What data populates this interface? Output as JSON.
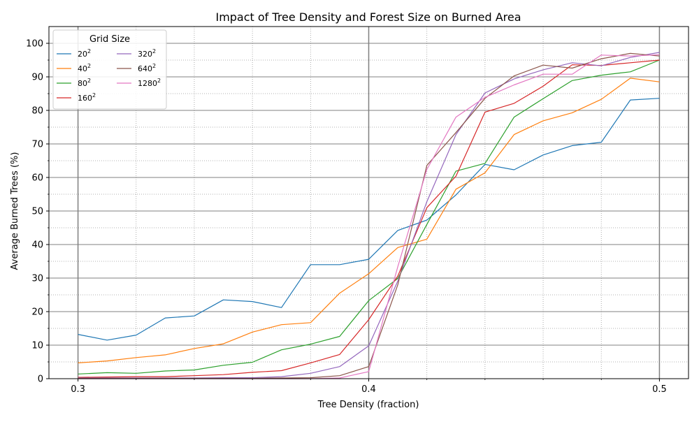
{
  "chart_data": {
    "type": "line",
    "title": "Impact of Tree Density and Forest Size on Burned Area",
    "xlabel": "Tree Density (fraction)",
    "ylabel": "Average Burned Trees (%)",
    "xlim": [
      0.29,
      0.51
    ],
    "ylim": [
      0,
      105
    ],
    "x_major_ticks": [
      0.3,
      0.4,
      0.5
    ],
    "x_major_tick_labels": [
      "0.3",
      "0.4",
      "0.5"
    ],
    "y_major_ticks": [
      0,
      10,
      20,
      30,
      40,
      50,
      60,
      70,
      80,
      90,
      100
    ],
    "y_major_tick_labels": [
      "0",
      "10",
      "20",
      "30",
      "40",
      "50",
      "60",
      "70",
      "80",
      "90",
      "100"
    ],
    "x_minor_ticks": [
      0.32,
      0.34,
      0.36,
      0.38,
      0.42,
      0.44,
      0.46,
      0.48
    ],
    "y_minor_ticks": [
      5,
      15,
      25,
      35,
      45,
      55,
      65,
      75,
      85,
      95
    ],
    "grid": "major solid gray, minor dotted",
    "legend": {
      "title": "Grid Size",
      "placement": "top-left",
      "columns": 2
    },
    "x": [
      0.3,
      0.31,
      0.32,
      0.33,
      0.34,
      0.35,
      0.36,
      0.37,
      0.38,
      0.39,
      0.4,
      0.41,
      0.42,
      0.43,
      0.44,
      0.45,
      0.46,
      0.47,
      0.48,
      0.49,
      0.5
    ],
    "series": [
      {
        "name": "20",
        "exp": "2",
        "color": "#1f77b4",
        "values": [
          13.2,
          11.5,
          13.0,
          18.1,
          18.7,
          23.5,
          23.0,
          21.2,
          34.0,
          34.0,
          35.6,
          44.2,
          47.3,
          54.8,
          63.9,
          62.3,
          66.7,
          69.5,
          70.5,
          83.1,
          83.6
        ]
      },
      {
        "name": "40",
        "exp": "2",
        "color": "#ff7f0e",
        "values": [
          4.7,
          5.3,
          6.3,
          7.1,
          9.0,
          10.4,
          13.9,
          16.1,
          16.7,
          25.5,
          31.3,
          39.1,
          41.6,
          56.5,
          61.4,
          72.8,
          76.9,
          79.3,
          83.3,
          89.6,
          88.5
        ]
      },
      {
        "name": "80",
        "exp": "2",
        "color": "#2ca02c",
        "values": [
          1.4,
          1.8,
          1.6,
          2.3,
          2.6,
          4.0,
          4.9,
          8.6,
          10.3,
          12.6,
          23.3,
          29.9,
          46.0,
          61.9,
          64.2,
          78.0,
          83.5,
          88.9,
          90.5,
          91.5,
          95.0
        ]
      },
      {
        "name": "160",
        "exp": "2",
        "color": "#d62728",
        "values": [
          0.4,
          0.5,
          0.6,
          0.6,
          0.9,
          1.2,
          1.9,
          2.4,
          4.7,
          7.2,
          17.6,
          30.6,
          51.0,
          60.4,
          79.5,
          82.1,
          87.2,
          93.6,
          93.4,
          94.2,
          95.0
        ]
      },
      {
        "name": "320",
        "exp": "2",
        "color": "#9467bd",
        "values": [
          0.2,
          0.2,
          0.2,
          0.2,
          0.2,
          0.3,
          0.3,
          0.6,
          1.6,
          3.6,
          9.8,
          29.1,
          52.8,
          72.8,
          85.2,
          89.4,
          92.1,
          94.2,
          93.3,
          95.8,
          97.3
        ]
      },
      {
        "name": "640",
        "exp": "2",
        "color": "#8c564b",
        "values": [
          0.1,
          0.1,
          0.1,
          0.1,
          0.1,
          0.1,
          0.1,
          0.2,
          0.3,
          0.9,
          3.6,
          28.0,
          63.6,
          73.4,
          83.6,
          90.3,
          93.5,
          92.6,
          95.4,
          97.0,
          96.2
        ]
      },
      {
        "name": "1280",
        "exp": "2",
        "color": "#e377c2",
        "values": [
          0.0,
          0.0,
          0.0,
          0.0,
          0.0,
          0.0,
          0.0,
          0.0,
          0.0,
          0.2,
          2.1,
          33.4,
          62.4,
          78.0,
          83.9,
          87.6,
          90.8,
          90.8,
          96.5,
          96.2,
          96.6
        ]
      }
    ]
  }
}
